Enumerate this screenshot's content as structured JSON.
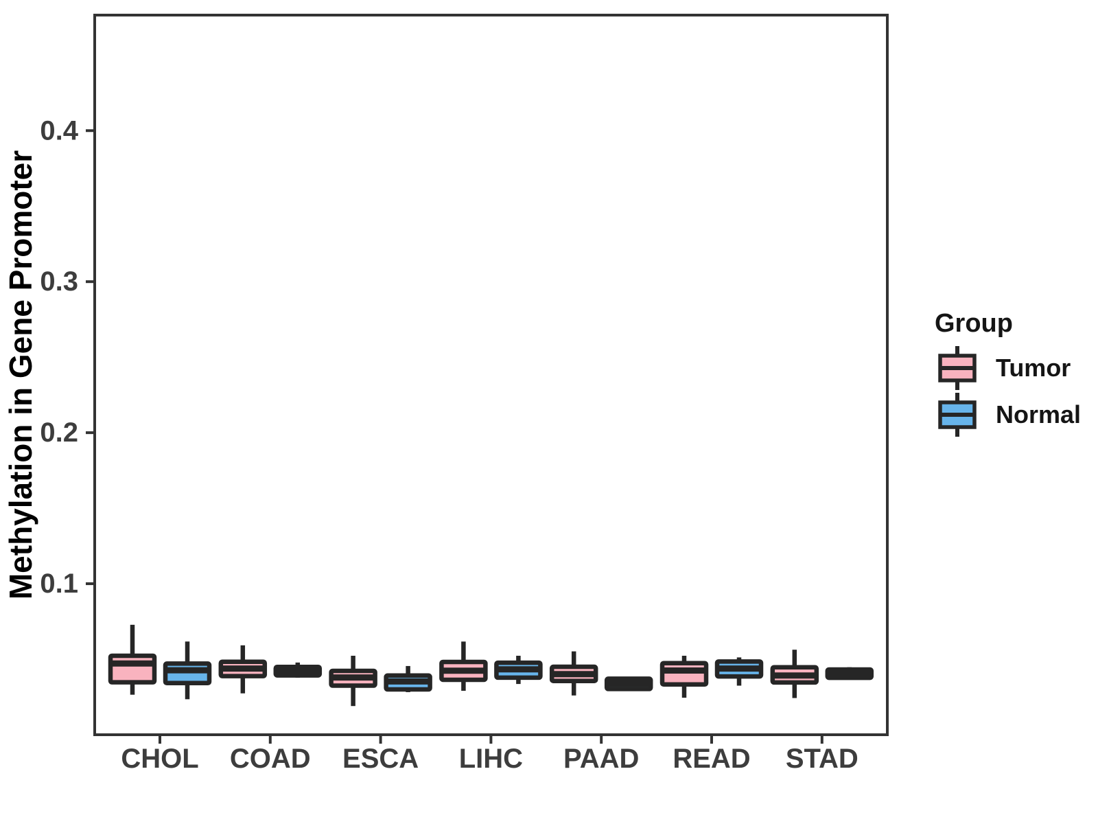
{
  "chart_data": {
    "type": "boxplot",
    "title": "",
    "xlabel": "",
    "ylabel": "Methylation in Gene Promoter",
    "legend_title": "Group",
    "legend_position": "right",
    "grid": false,
    "categories": [
      "CHOL",
      "COAD",
      "ESCA",
      "LIHC",
      "PAAD",
      "READ",
      "STAD"
    ],
    "yticks": [
      0.1,
      0.2,
      0.3,
      0.4
    ],
    "ylim": [
      0,
      0.4765
    ],
    "colors": {
      "box_border": "#262626",
      "axis_line": "#333333",
      "tick_label": "#3d3d3d",
      "axis_title": "#000000",
      "tumor_fill": "#F9B3BF",
      "normal_fill": "#67B4EA"
    },
    "series": [
      {
        "name": "Tumor",
        "fill": "#F9B3BF",
        "boxes": [
          {
            "category": "CHOL",
            "min": 0.0265,
            "q1": 0.0347,
            "median": 0.0472,
            "q3": 0.0523,
            "max": 0.0728
          },
          {
            "category": "COAD",
            "min": 0.0274,
            "q1": 0.0388,
            "median": 0.0438,
            "q3": 0.0483,
            "max": 0.0592
          },
          {
            "category": "ESCA",
            "min": 0.019,
            "q1": 0.0325,
            "median": 0.0379,
            "q3": 0.0423,
            "max": 0.0523
          },
          {
            "category": "LIHC",
            "min": 0.0291,
            "q1": 0.0364,
            "median": 0.0424,
            "q3": 0.0482,
            "max": 0.0617
          },
          {
            "category": "PAAD",
            "min": 0.026,
            "q1": 0.0356,
            "median": 0.0401,
            "q3": 0.045,
            "max": 0.0552
          },
          {
            "category": "READ",
            "min": 0.0245,
            "q1": 0.0333,
            "median": 0.0425,
            "q3": 0.0474,
            "max": 0.0523
          },
          {
            "category": "STAD",
            "min": 0.0243,
            "q1": 0.0346,
            "median": 0.0392,
            "q3": 0.0447,
            "max": 0.0563
          }
        ]
      },
      {
        "name": "Normal",
        "fill": "#67B4EA",
        "boxes": [
          {
            "category": "CHOL",
            "min": 0.0235,
            "q1": 0.0342,
            "median": 0.0427,
            "q3": 0.0471,
            "max": 0.0617
          },
          {
            "category": "COAD",
            "min": 0.0378,
            "q1": 0.0393,
            "median": 0.0423,
            "q3": 0.0449,
            "max": 0.0478
          },
          {
            "category": "ESCA",
            "min": 0.0282,
            "q1": 0.03,
            "median": 0.0353,
            "q3": 0.0392,
            "max": 0.0455
          },
          {
            "category": "LIHC",
            "min": 0.0336,
            "q1": 0.0378,
            "median": 0.0433,
            "q3": 0.0477,
            "max": 0.0523
          },
          {
            "category": "PAAD",
            "min": 0.0296,
            "q1": 0.0303,
            "median": 0.0337,
            "q3": 0.0371,
            "max": 0.0383
          },
          {
            "category": "READ",
            "min": 0.0325,
            "q1": 0.0386,
            "median": 0.0438,
            "q3": 0.0485,
            "max": 0.0512
          },
          {
            "category": "STAD",
            "min": 0.0364,
            "q1": 0.0377,
            "median": 0.0405,
            "q3": 0.0432,
            "max": 0.0447
          }
        ]
      }
    ]
  }
}
